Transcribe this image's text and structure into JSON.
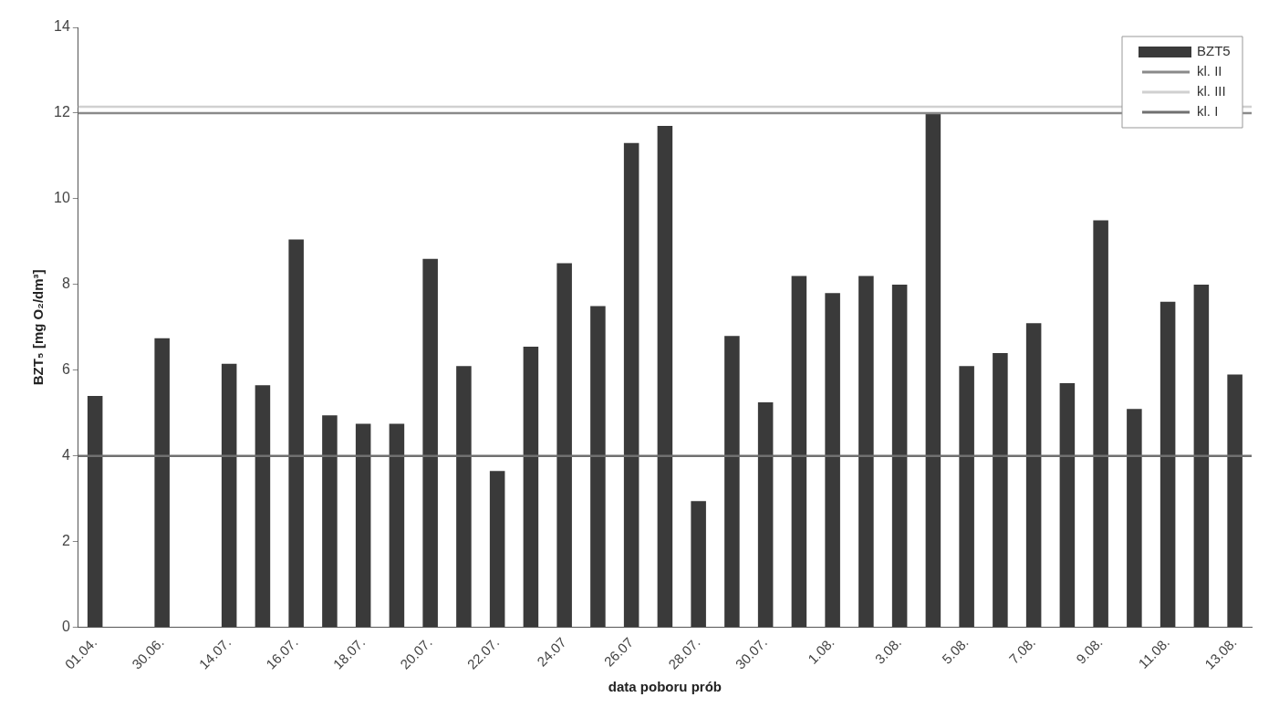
{
  "chart_data": {
    "type": "bar",
    "xlabel": "data poboru prób",
    "ylabel": "BZT₅ [mg O₂/dm³]",
    "categories": [
      "01.04.",
      null,
      "30.06.",
      null,
      "14.07.",
      null,
      "16.07.",
      null,
      "18.07.",
      null,
      "20.07.",
      null,
      "22.07.",
      null,
      "24.07",
      null,
      "26.07",
      null,
      "28.07.",
      null,
      "30.07.",
      null,
      "1.08.",
      null,
      "3.08.",
      null,
      "5.08.",
      null,
      "7.08.",
      null,
      "9.08.",
      null,
      "11.08.",
      null,
      "13.08."
    ],
    "series": [
      {
        "name": "BZT5",
        "color": "#3a3a3a",
        "values": [
          5.4,
          null,
          6.75,
          null,
          6.15,
          5.65,
          9.05,
          4.95,
          4.75,
          4.75,
          8.6,
          6.1,
          3.65,
          6.55,
          8.5,
          7.5,
          11.3,
          11.7,
          2.95,
          6.8,
          5.25,
          8.2,
          7.8,
          8.2,
          8.0,
          12.0,
          6.1,
          6.4,
          7.1,
          5.7,
          9.5,
          5.1,
          7.6,
          8.0,
          5.9
        ]
      }
    ],
    "ylim": [
      0,
      14
    ],
    "yticks": [
      0,
      2,
      4,
      6,
      8,
      10,
      12,
      14
    ],
    "grid": false,
    "legend": "top right",
    "ref_lines": [
      {
        "axis": "y",
        "value": 12,
        "label": "kl. II",
        "color": "#8a8a8a"
      },
      {
        "axis": "y",
        "value": 12.15,
        "label": "kl. III",
        "color": "#d0d0d0"
      },
      {
        "axis": "y",
        "value": 4,
        "label": "kl. I",
        "color": "#707070"
      }
    ]
  }
}
